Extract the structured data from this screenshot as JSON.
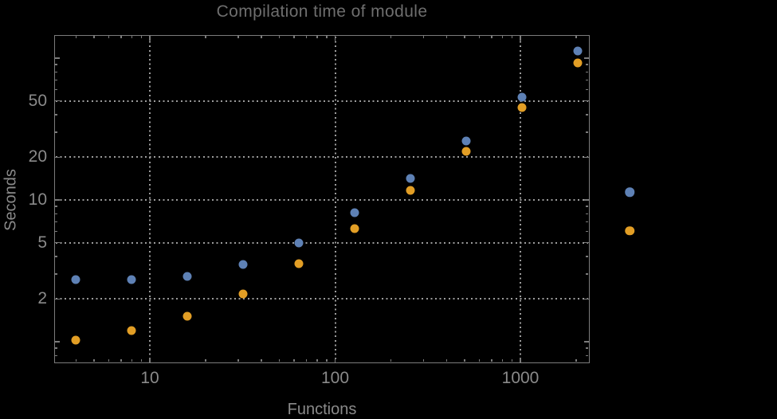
{
  "title": "Compilation time of module",
  "chart_data": {
    "type": "scatter",
    "title": "Compilation time of module",
    "xlabel": "Functions",
    "ylabel": "Seconds",
    "xscale": "log",
    "yscale": "log",
    "xlim": [
      3.1,
      2350
    ],
    "ylim": [
      0.72,
      145
    ],
    "grid": "dotted gray lines at labeled major ticks",
    "legend_position": "two unlabeled color markers right of frame",
    "xticks": [
      10,
      100,
      1000
    ],
    "yticks": [
      2,
      5,
      10,
      20,
      50
    ],
    "yticks_unlabeled_major": [
      1,
      100
    ],
    "x": [
      4,
      8,
      16,
      32,
      64,
      128,
      256,
      512,
      1024,
      2048
    ],
    "series": [
      {
        "name": "series-1",
        "color": "#5e81b5",
        "marker": "filled-circle",
        "values": [
          2.74,
          2.74,
          2.87,
          3.5,
          5.0,
          8.1,
          14.1,
          26,
          53,
          112
        ]
      },
      {
        "name": "series-2",
        "color": "#e29e25",
        "marker": "filled-circle",
        "values": [
          1.03,
          1.2,
          1.52,
          2.18,
          3.55,
          6.3,
          11.7,
          22,
          45,
          92
        ]
      }
    ]
  },
  "legend": {
    "markers": [
      {
        "name": "series-1-marker",
        "color": "#5e81b5"
      },
      {
        "name": "series-2-marker",
        "color": "#e29e25"
      }
    ]
  },
  "colors": {
    "background": "#000000",
    "frame": "#7b7b7b",
    "grid": "#9c9c9c",
    "title_text": "#6e6e6e",
    "label_text": "#8a8a8a",
    "series1": "#5e81b5",
    "series2": "#e29e25"
  }
}
